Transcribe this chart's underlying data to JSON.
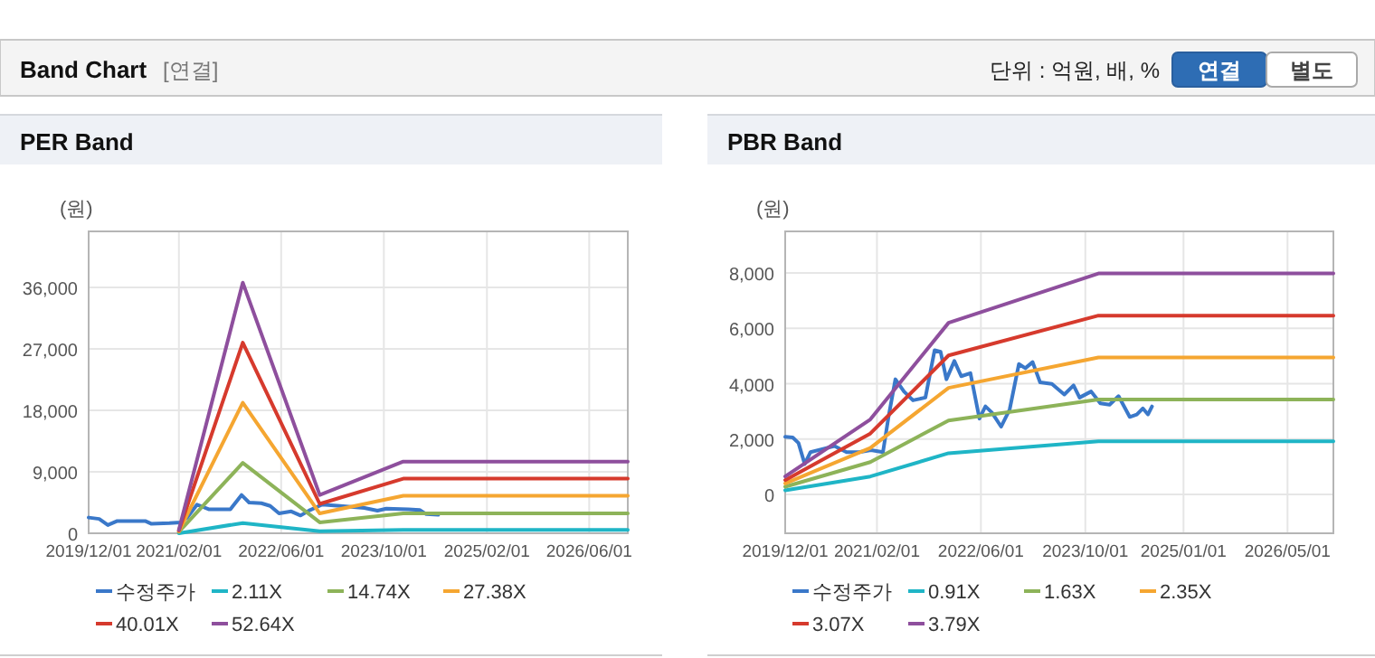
{
  "chart_data": [
    {
      "type": "other",
      "title": "Band Chart",
      "annotations": [
        "[연결]",
        "단위 : 억원, 배, %",
        "연결",
        "별도"
      ]
    },
    {
      "type": "line",
      "title": "PER Band",
      "ylabel": "(원)",
      "xlim": [
        "2019-12-01",
        "2026-12-01"
      ],
      "ylim": [
        0,
        44200
      ],
      "xticks": [
        {
          "value": "2019-12-01",
          "label": "2019/12/01"
        },
        {
          "value": "2021-02-01",
          "label": "2021/02/01"
        },
        {
          "value": "2022-06-01",
          "label": "2022/06/01"
        },
        {
          "value": "2023-10-01",
          "label": "2023/10/01"
        },
        {
          "value": "2025-02-01",
          "label": "2025/02/01"
        },
        {
          "value": "2026-06-01",
          "label": "2026/06/01"
        }
      ],
      "yticks": [
        0,
        {
          "value": 9000,
          "label": "9,000"
        },
        {
          "value": 18000,
          "label": "18,000"
        },
        {
          "value": 27000,
          "label": "27,000"
        },
        {
          "value": 36000,
          "label": "36,000"
        }
      ],
      "grid": true,
      "legend": "bottom",
      "series": [
        {
          "name": "수정주가",
          "color": "#3a78c9",
          "x": [
            "2019-12-01",
            "2020-01-20",
            "2020-03-01",
            "2020-04-15",
            "2020-08-25",
            "2020-09-22",
            "2020-12-18",
            "2021-02-10",
            "2021-03-13",
            "2021-04-28",
            "2021-06-25",
            "2021-10-03",
            "2021-11-25",
            "2021-12-31",
            "2022-02-27",
            "2022-04-10",
            "2022-05-22",
            "2022-07-19",
            "2022-09-01",
            "2022-10-16",
            "2022-12-13",
            "2023-03-07",
            "2023-07-01",
            "2023-09-01",
            "2023-10-13",
            "2024-01-25",
            "2024-03-19",
            "2024-04-19",
            "2024-06-15"
          ],
          "values": [
            2300,
            2100,
            1200,
            1800,
            1800,
            1400,
            1500,
            1600,
            2300,
            4200,
            3500,
            3500,
            5600,
            4500,
            4400,
            4000,
            2900,
            3200,
            2600,
            3400,
            4200,
            4000,
            3700,
            3300,
            3600,
            3500,
            3400,
            2800,
            2700
          ]
        },
        {
          "name": "2.11X",
          "color": "#1fb5c6",
          "x": [
            "2021-02-01",
            "2021-12-01",
            "2022-12-01",
            "2024-01-01",
            "2026-12-01"
          ],
          "values": [
            0,
            1500,
            300,
            500,
            500
          ]
        },
        {
          "name": "14.74X",
          "color": "#8db359",
          "x": [
            "2021-02-01",
            "2021-12-01",
            "2022-12-01",
            "2024-01-01",
            "2026-12-01"
          ],
          "values": [
            200,
            10300,
            1600,
            2900,
            2900
          ]
        },
        {
          "name": "27.38X",
          "color": "#f5a631",
          "x": [
            "2021-02-01",
            "2021-12-01",
            "2022-12-01",
            "2024-01-01",
            "2026-12-01"
          ],
          "values": [
            300,
            19100,
            2900,
            5500,
            5500
          ]
        },
        {
          "name": "40.01X",
          "color": "#d63a2d",
          "x": [
            "2021-02-01",
            "2021-12-01",
            "2022-12-01",
            "2024-01-01",
            "2026-12-01"
          ],
          "values": [
            400,
            27900,
            4300,
            8000,
            8000
          ]
        },
        {
          "name": "52.64X",
          "color": "#8e4f9d",
          "x": [
            "2021-02-01",
            "2021-12-01",
            "2022-12-01",
            "2024-01-01",
            "2026-12-01"
          ],
          "values": [
            500,
            36700,
            5600,
            10500,
            10500
          ]
        }
      ]
    },
    {
      "type": "line",
      "title": "PBR Band",
      "ylabel": "(원)",
      "xlim": [
        "2019-12-01",
        "2026-12-01"
      ],
      "ylim": [
        -1400,
        9500
      ],
      "xticks": [
        {
          "value": "2019-12-01",
          "label": "2019/12/01"
        },
        {
          "value": "2021-02-01",
          "label": "2021/02/01"
        },
        {
          "value": "2022-06-01",
          "label": "2022/06/01"
        },
        {
          "value": "2023-10-01",
          "label": "2023/10/01"
        },
        {
          "value": "2025-01-01",
          "label": "2025/01/01"
        },
        {
          "value": "2026-05-01",
          "label": "2026/05/01"
        }
      ],
      "yticks": [
        0,
        {
          "value": 2000,
          "label": "2,000"
        },
        {
          "value": 4000,
          "label": "4,000"
        },
        {
          "value": 6000,
          "label": "6,000"
        },
        {
          "value": 8000,
          "label": "8,000"
        }
      ],
      "grid": true,
      "legend": "bottom",
      "series": [
        {
          "name": "수정주가",
          "color": "#3a78c9",
          "x": [
            "2019-12-01",
            "2020-01-05",
            "2020-02-01",
            "2020-03-01",
            "2020-03-28",
            "2020-05-22",
            "2020-07-18",
            "2020-09-12",
            "2020-11-10",
            "2021-01-04",
            "2021-03-01",
            "2021-03-28",
            "2021-04-28",
            "2021-06-07",
            "2021-07-19",
            "2021-09-15",
            "2021-10-28",
            "2021-11-25",
            "2021-12-22",
            "2022-01-28",
            "2022-03-01",
            "2022-04-13",
            "2022-05-25",
            "2022-06-22",
            "2022-07-22",
            "2022-09-03",
            "2022-10-13",
            "2022-11-25",
            "2022-12-25",
            "2023-01-28",
            "2023-03-04",
            "2023-04-28",
            "2023-06-25",
            "2023-08-07",
            "2023-09-04",
            "2023-10-28",
            "2023-12-10",
            "2024-01-22",
            "2024-03-04",
            "2024-04-25",
            "2024-05-28",
            "2024-06-25",
            "2024-07-19",
            "2024-08-07"
          ],
          "values": [
            2080,
            2060,
            1860,
            1100,
            1530,
            1640,
            1750,
            1530,
            1530,
            1600,
            1530,
            2850,
            4160,
            3720,
            3400,
            3500,
            5210,
            5150,
            4160,
            4820,
            4270,
            4380,
            2740,
            3180,
            2960,
            2450,
            3070,
            4710,
            4560,
            4780,
            4050,
            3990,
            3610,
            3940,
            3500,
            3720,
            3290,
            3240,
            3550,
            2800,
            2890,
            3110,
            2890,
            3180
          ]
        },
        {
          "name": "0.91X",
          "color": "#1fb5c6",
          "x": [
            "2019-12-01",
            "2021-01-01",
            "2022-01-01",
            "2023-12-01",
            "2026-12-01"
          ],
          "values": [
            150,
            650,
            1490,
            1920,
            1920
          ]
        },
        {
          "name": "1.63X",
          "color": "#8db359",
          "x": [
            "2019-12-01",
            "2021-01-01",
            "2022-01-01",
            "2023-12-01",
            "2026-12-01"
          ],
          "values": [
            280,
            1170,
            2670,
            3430,
            3430
          ]
        },
        {
          "name": "2.35X",
          "color": "#f5a631",
          "x": [
            "2019-12-01",
            "2021-01-01",
            "2022-01-01",
            "2023-12-01",
            "2026-12-01"
          ],
          "values": [
            400,
            1680,
            3850,
            4950,
            4950
          ]
        },
        {
          "name": "3.07X",
          "color": "#d63a2d",
          "x": [
            "2019-12-01",
            "2021-01-01",
            "2022-01-01",
            "2023-12-01",
            "2026-12-01"
          ],
          "values": [
            520,
            2200,
            5020,
            6460,
            6460
          ]
        },
        {
          "name": "3.79X",
          "color": "#8e4f9d",
          "x": [
            "2019-12-01",
            "2021-01-01",
            "2022-01-01",
            "2023-12-01",
            "2026-12-01"
          ],
          "values": [
            650,
            2710,
            6200,
            7980,
            7980
          ]
        }
      ]
    }
  ]
}
